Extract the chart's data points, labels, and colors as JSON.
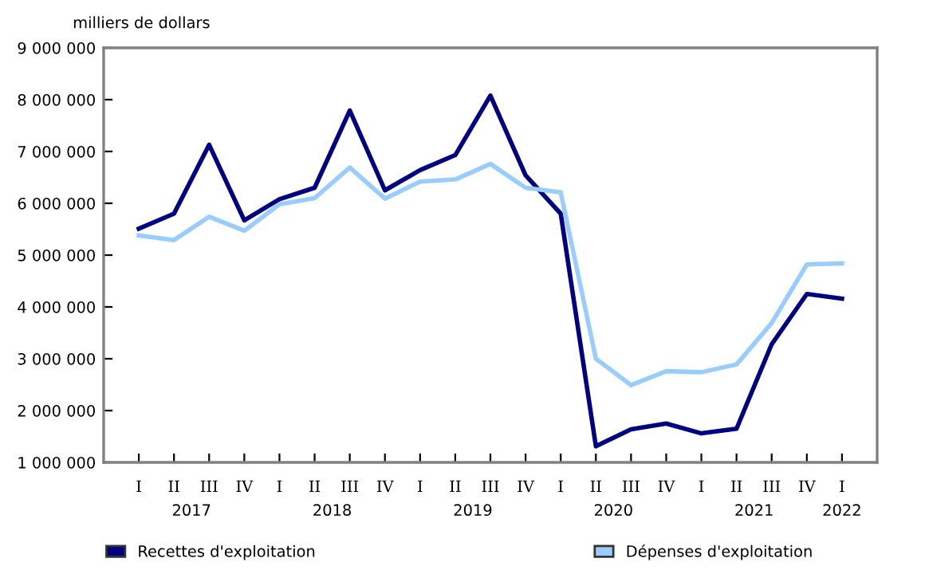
{
  "chart_data": {
    "type": "line",
    "ylabel": "milliers de dollars",
    "categories": [
      "I",
      "II",
      "III",
      "IV",
      "I",
      "II",
      "III",
      "IV",
      "I",
      "II",
      "III",
      "IV",
      "I",
      "II",
      "III",
      "IV",
      "I",
      "II",
      "III",
      "IV",
      "I"
    ],
    "annotations": [
      "2017",
      "2018",
      "2019",
      "2020",
      "2021",
      "2022"
    ],
    "series": [
      {
        "name": "Recettes d'exploitation",
        "color": "#000080",
        "values": [
          5510000,
          5800000,
          7130000,
          5670000,
          6080000,
          6300000,
          7790000,
          6250000,
          6640000,
          6930000,
          8080000,
          6540000,
          5800000,
          1310000,
          1640000,
          1750000,
          1560000,
          1650000,
          3280000,
          4250000,
          4160000
        ]
      },
      {
        "name": "Dépenses d'exploitation",
        "color": "#99ccff",
        "values": [
          5380000,
          5290000,
          5740000,
          5470000,
          5980000,
          6100000,
          6690000,
          6090000,
          6420000,
          6460000,
          6760000,
          6300000,
          6210000,
          3000000,
          2490000,
          2760000,
          2740000,
          2890000,
          3690000,
          4820000,
          4840000
        ]
      }
    ],
    "ylim": [
      1000000,
      9000000
    ],
    "yticks": [
      {
        "value": 1000000,
        "label": "1 000 000"
      },
      {
        "value": 2000000,
        "label": "2 000 000"
      },
      {
        "value": 3000000,
        "label": "3 000 000"
      },
      {
        "value": 4000000,
        "label": "4 000 000"
      },
      {
        "value": 5000000,
        "label": "5 000 000"
      },
      {
        "value": 6000000,
        "label": "6 000 000"
      },
      {
        "value": 7000000,
        "label": "7 000 000"
      },
      {
        "value": 8000000,
        "label": "8 000 000"
      },
      {
        "value": 9000000,
        "label": "9 000 000"
      }
    ],
    "legend": "bottom",
    "grid": false,
    "line_style": "solid",
    "marker": "none"
  }
}
